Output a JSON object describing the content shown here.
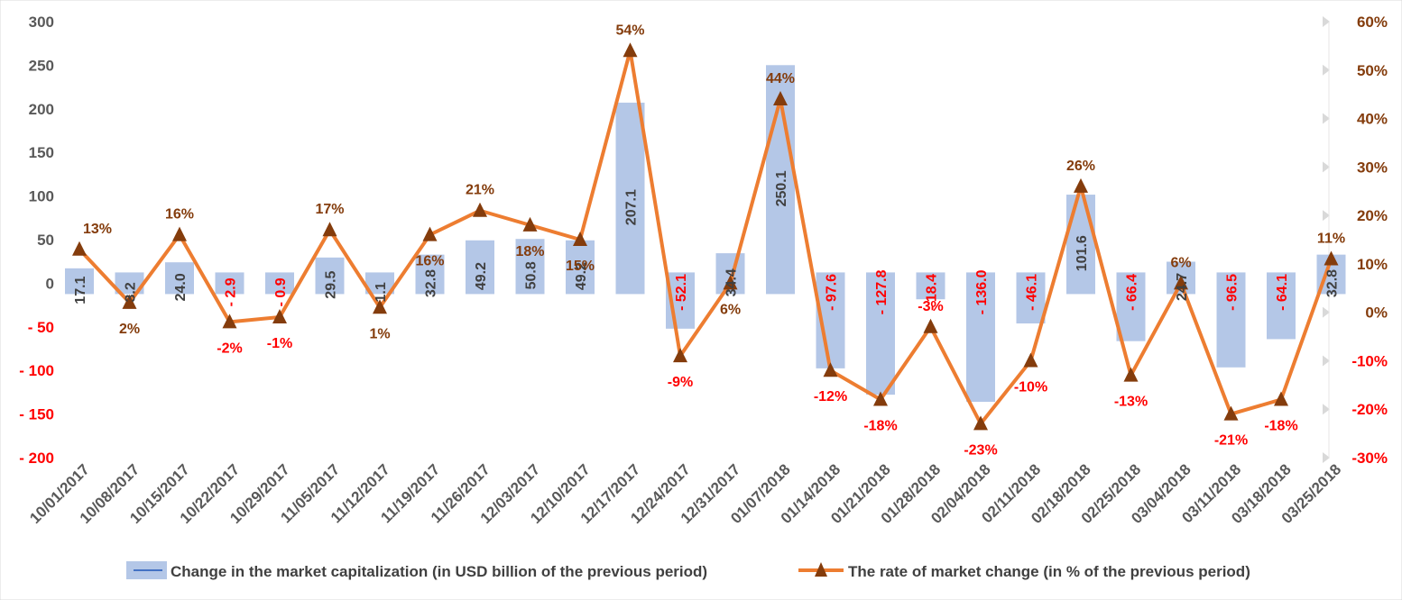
{
  "chart_data": {
    "type": "bar+line",
    "categories": [
      "10/01/2017",
      "10/08/2017",
      "10/15/2017",
      "10/22/2017",
      "10/29/2017",
      "11/05/2017",
      "11/12/2017",
      "11/19/2017",
      "11/26/2017",
      "12/03/2017",
      "12/10/2017",
      "12/17/2017",
      "12/24/2017",
      "12/31/2017",
      "01/07/2018",
      "01/14/2018",
      "01/21/2018",
      "01/28/2018",
      "02/04/2018",
      "02/11/2018",
      "02/18/2018",
      "02/25/2018",
      "03/04/2018",
      "03/11/2018",
      "03/18/2018",
      "03/25/2018"
    ],
    "series": [
      {
        "name": "Change in the market capitalization  (in USD billion of the previous period)",
        "kind": "bar",
        "axis": "left",
        "color": "#b4c7e7",
        "values": [
          17.1,
          3.2,
          24.0,
          -2.9,
          -0.9,
          29.5,
          1.1,
          32.8,
          49.2,
          50.8,
          49.2,
          207.1,
          -52.1,
          34.4,
          250.1,
          -97.6,
          -127.8,
          -18.4,
          -136.0,
          -46.1,
          101.6,
          -66.4,
          24.7,
          -96.5,
          -64.1,
          32.8
        ],
        "labels": [
          "17.1",
          "3.2",
          "24.0",
          "- 2.9",
          "- 0.9",
          "29.5",
          "1.1",
          "32.8",
          "49.2",
          "50.8",
          "49.2",
          "207.1",
          "- 52.1",
          "34.4",
          "250.1",
          "- 97.6",
          "- 127.8",
          "- 18.4",
          "- 136.0",
          "- 46.1",
          "101.6",
          "- 66.4",
          "24.7",
          "- 96.5",
          "- 64.1",
          "32.8"
        ]
      },
      {
        "name": "The rate of market change (in % of the previous period)",
        "kind": "line",
        "axis": "right",
        "color": "#ed7d31",
        "marker_color": "#843c0c",
        "values": [
          13,
          2,
          16,
          -2,
          -1,
          17,
          1,
          16,
          21,
          18,
          15,
          54,
          -9,
          6,
          44,
          -12,
          -18,
          -3,
          -23,
          -10,
          26,
          -13,
          6,
          -21,
          -18,
          11
        ],
        "labels": [
          "13%",
          "2%",
          "16%",
          "-2%",
          "-1%",
          "17%",
          "1%",
          "16%",
          "21%",
          "18%",
          "15%",
          "54%",
          "-9%",
          "6%",
          "44%",
          "-12%",
          "-18%",
          "-3%",
          "-23%",
          "-10%",
          "26%",
          "-13%",
          "6%",
          "-21%",
          "-18%",
          "11%"
        ]
      }
    ],
    "y_left": {
      "ylim": [
        -200,
        300
      ],
      "ticks": [
        300,
        250,
        200,
        150,
        100,
        50,
        0,
        -50,
        -100,
        -150,
        -200
      ],
      "tick_labels": [
        "300",
        "250",
        "200",
        "150",
        "100",
        "50",
        "0",
        "- 50",
        "- 100",
        "- 150",
        "- 200"
      ]
    },
    "y_right": {
      "ylim": [
        -30,
        60
      ],
      "ticks": [
        60,
        50,
        40,
        30,
        20,
        10,
        0,
        -10,
        -20,
        -30
      ],
      "tick_labels": [
        "60%",
        "50%",
        "40%",
        "30%",
        "20%",
        "10%",
        "0%",
        "-10%",
        "-20%",
        "-30%"
      ]
    },
    "grid": false,
    "legend_position": "bottom",
    "colors": {
      "negative_text": "#ff0000",
      "positive_text": "#404040",
      "pct_text": "#843c0c",
      "axis_text": "#595959"
    }
  },
  "legend": {
    "bar_label": "Change in the market capitalization  (in USD billion of the previous period)",
    "line_label": "The rate of market change (in % of the previous period)"
  }
}
